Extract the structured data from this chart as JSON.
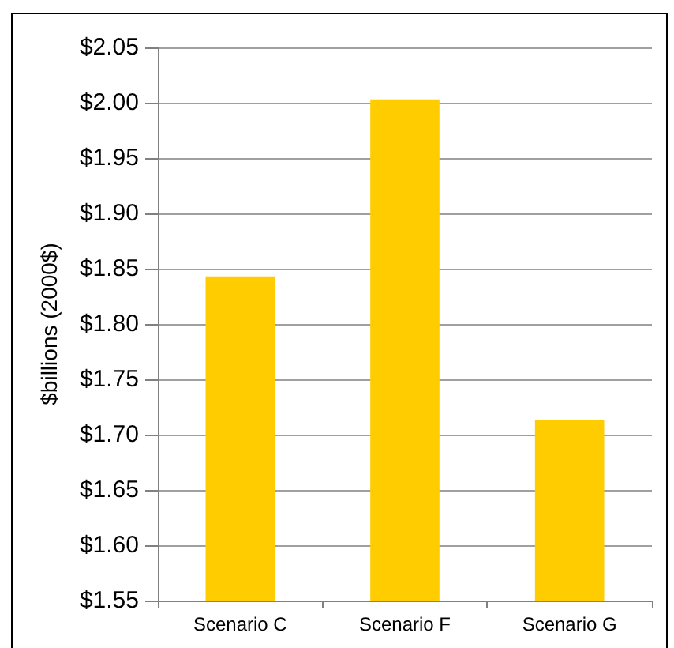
{
  "chart_data": {
    "type": "bar",
    "ylabel": "$billions (2000$)",
    "categories": [
      "Scenario C",
      "Scenario F",
      "Scenario G"
    ],
    "values": [
      1.843,
      2.003,
      1.713
    ],
    "color": "#ffcc00",
    "ylim": [
      1.55,
      2.05
    ],
    "yticks": [
      {
        "value": 1.55,
        "label": "$1.55"
      },
      {
        "value": 1.6,
        "label": "$1.60"
      },
      {
        "value": 1.65,
        "label": "$1.65"
      },
      {
        "value": 1.7,
        "label": "$1.70"
      },
      {
        "value": 1.75,
        "label": "$1.75"
      },
      {
        "value": 1.8,
        "label": "$1.80"
      },
      {
        "value": 1.85,
        "label": "$1.85"
      },
      {
        "value": 1.9,
        "label": "$1.90"
      },
      {
        "value": 1.95,
        "label": "$1.95"
      },
      {
        "value": 2.0,
        "label": "$2.00"
      },
      {
        "value": 2.05,
        "label": "$2.05"
      }
    ],
    "grid": "y"
  }
}
